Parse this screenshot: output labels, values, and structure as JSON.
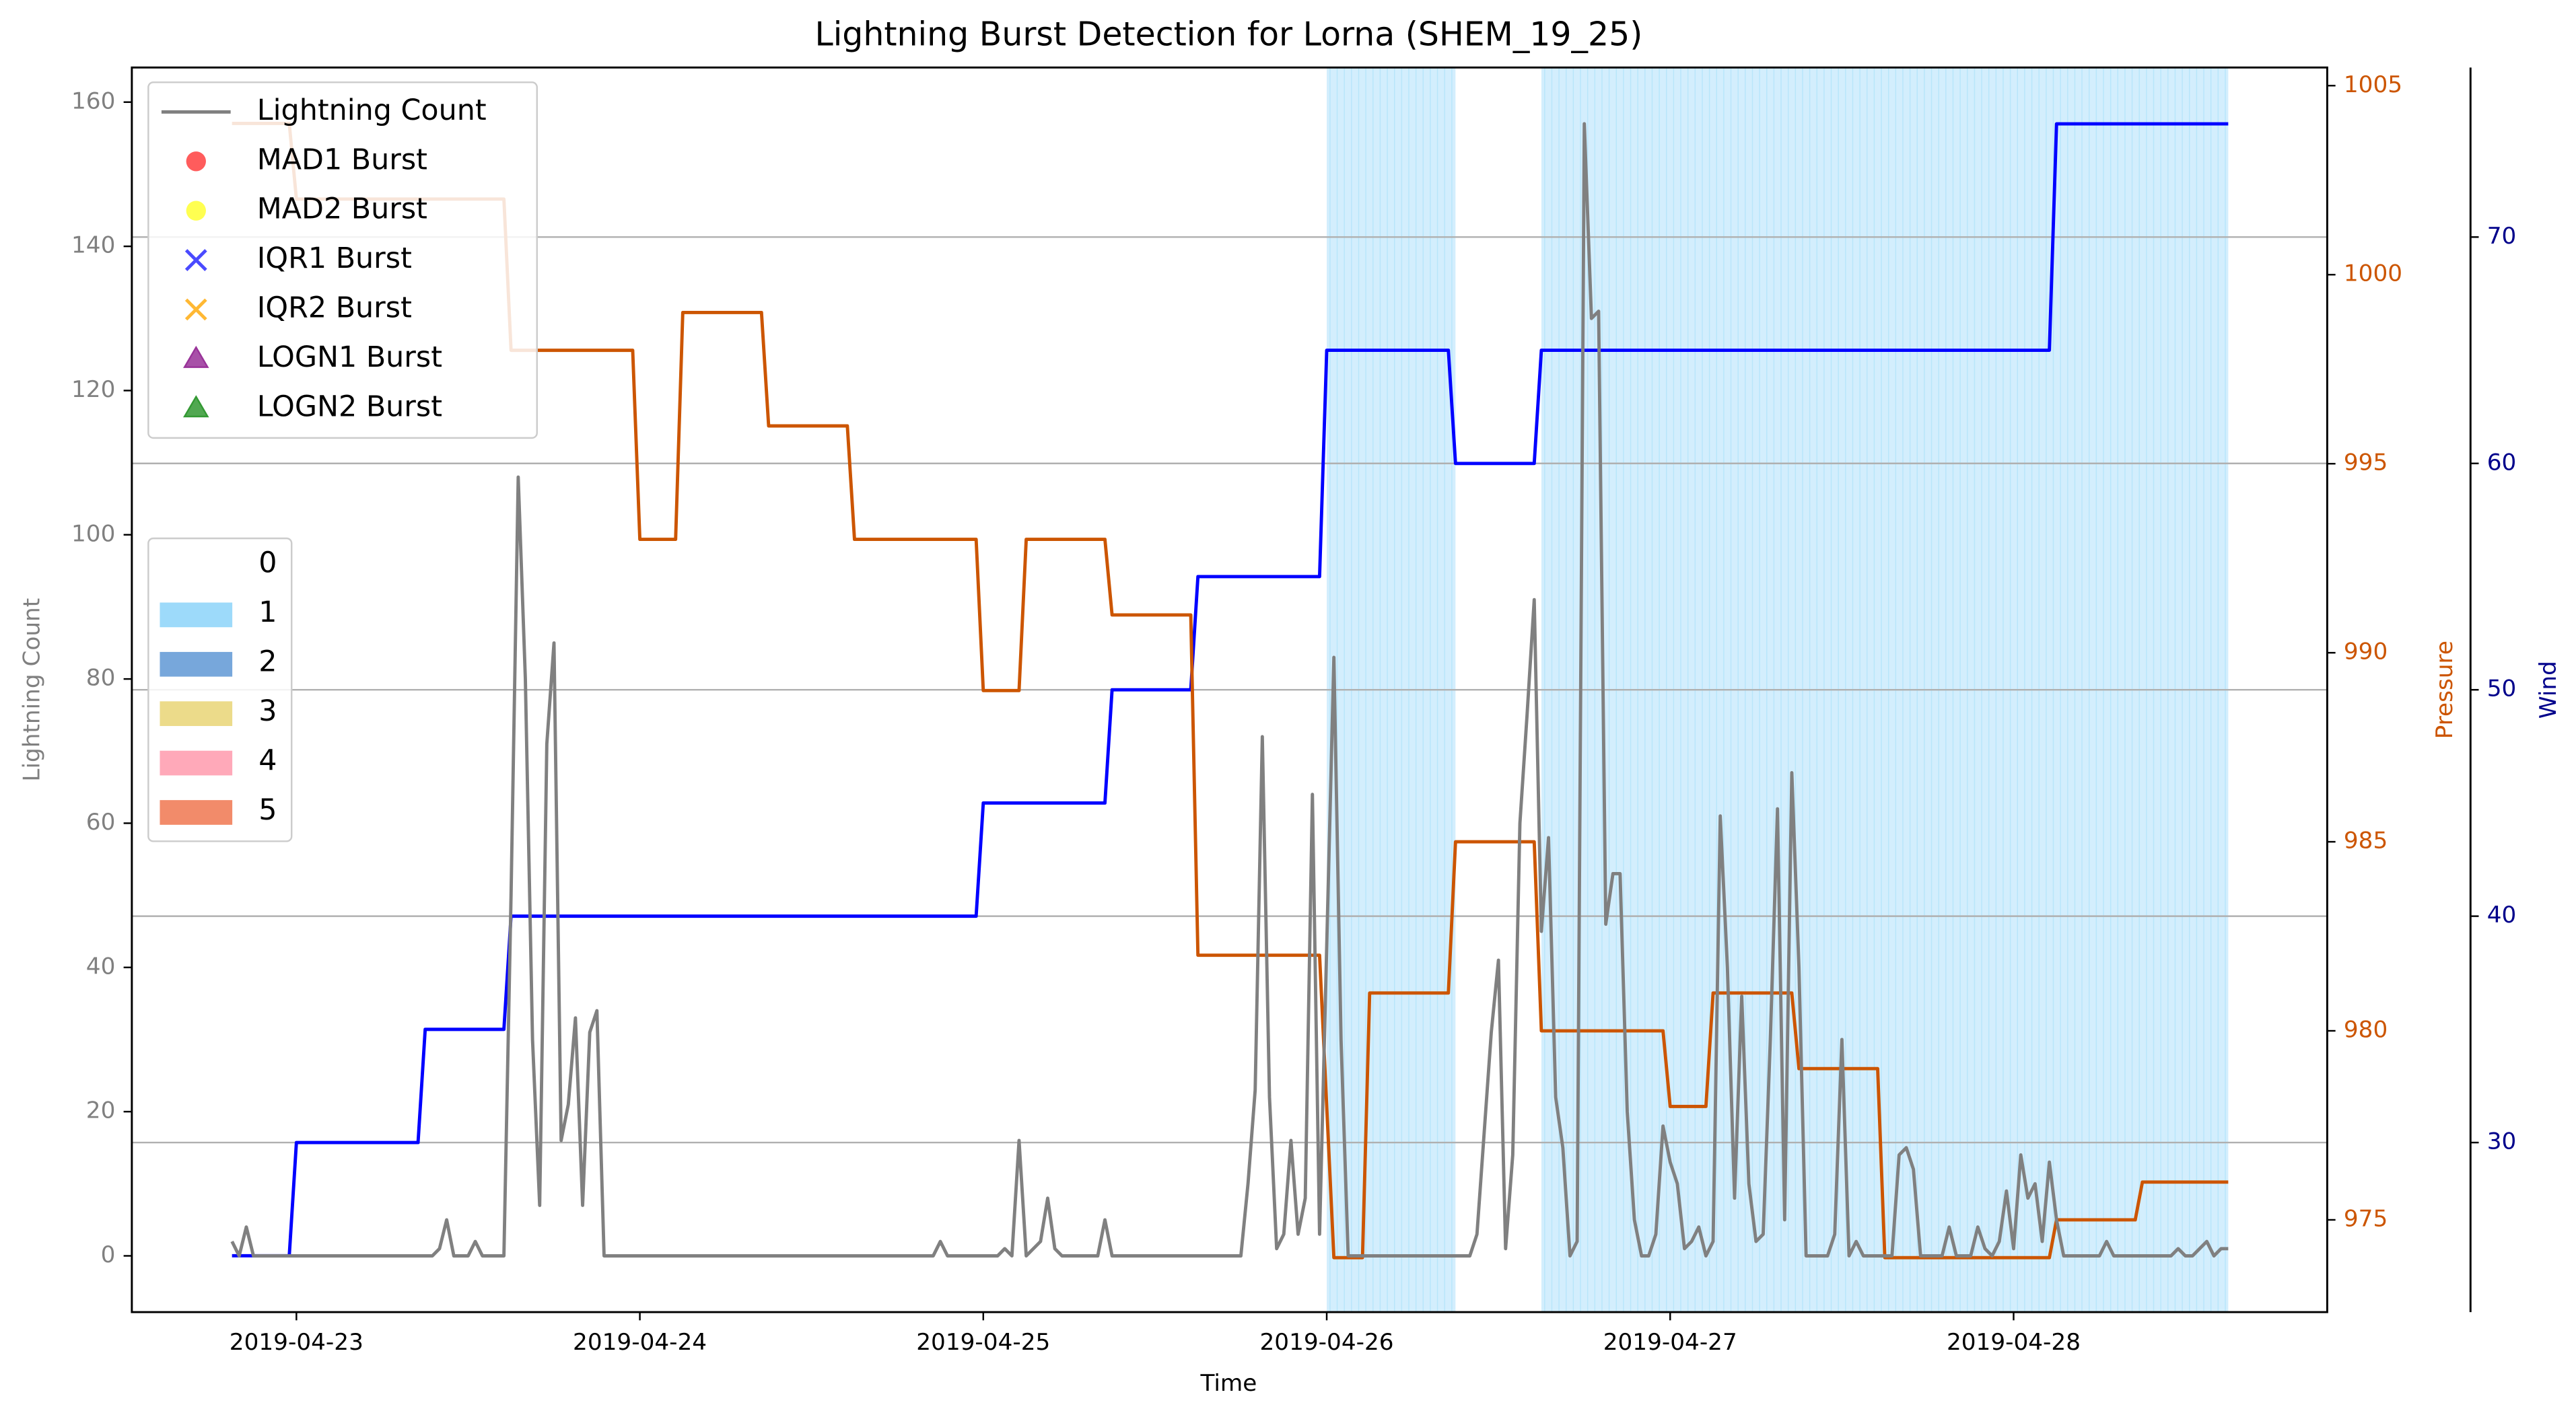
{
  "chart_data": {
    "type": "line",
    "title": "Lightning Burst Detection for Lorna (SHEM_19_25)",
    "xlabel": "Time",
    "ylabel": "Lightning Count",
    "y2label": "Pressure",
    "y3label": "Wind",
    "xlim": [
      "2019-04-22 12:30",
      "2019-04-28 21:55"
    ],
    "xticks": [
      "2019-04-23",
      "2019-04-24",
      "2019-04-25",
      "2019-04-26",
      "2019-04-27",
      "2019-04-28"
    ],
    "ylim": [
      -7.8,
      164.8
    ],
    "yticks": [
      0,
      20,
      40,
      60,
      80,
      100,
      120,
      140,
      160
    ],
    "y2lim": [
      972.56,
      1005.48
    ],
    "y2ticks": [
      975,
      980,
      985,
      990,
      995,
      1000,
      1005
    ],
    "y3lim": [
      22.51,
      77.49
    ],
    "y3ticks": [
      30,
      40,
      50,
      60,
      70
    ],
    "grid": "y3",
    "legend": "upper left",
    "series": [
      {
        "name": "Lightning Count",
        "color": "#808080",
        "axis": "y",
        "x": [
          "2019-04-22 19:30",
          "2019-04-22 20:00",
          "2019-04-22 20:30",
          "2019-04-22 21:00",
          "2019-04-23 09:30",
          "2019-04-23 10:00",
          "2019-04-23 10:30",
          "2019-04-23 11:00",
          "2019-04-23 12:00",
          "2019-04-23 12:30",
          "2019-04-23 13:00",
          "2019-04-23 14:30",
          "2019-04-23 15:00",
          "2019-04-23 15:30",
          "2019-04-23 16:00",
          "2019-04-23 16:30",
          "2019-04-23 17:00",
          "2019-04-23 17:30",
          "2019-04-23 18:00",
          "2019-04-23 18:30",
          "2019-04-23 19:00",
          "2019-04-23 19:30",
          "2019-04-23 20:00",
          "2019-04-23 20:30",
          "2019-04-23 21:00",
          "2019-04-23 21:30",
          "2019-04-24 20:30",
          "2019-04-24 21:00",
          "2019-04-24 21:30",
          "2019-04-25 01:00",
          "2019-04-25 01:30",
          "2019-04-25 02:00",
          "2019-04-25 02:30",
          "2019-04-25 03:00",
          "2019-04-25 04:00",
          "2019-04-25 04:30",
          "2019-04-25 05:00",
          "2019-04-25 05:30",
          "2019-04-25 08:00",
          "2019-04-25 08:30",
          "2019-04-25 09:00",
          "2019-04-25 18:00",
          "2019-04-25 18:30",
          "2019-04-25 19:00",
          "2019-04-25 19:30",
          "2019-04-25 20:00",
          "2019-04-25 20:30",
          "2019-04-25 21:00",
          "2019-04-25 21:30",
          "2019-04-25 22:00",
          "2019-04-25 22:30",
          "2019-04-25 23:00",
          "2019-04-25 23:30",
          "2019-04-26 00:30",
          "2019-04-26 01:00",
          "2019-04-26 01:30",
          "2019-04-26 10:00",
          "2019-04-26 10:30",
          "2019-04-26 11:30",
          "2019-04-26 12:00",
          "2019-04-26 12:30",
          "2019-04-26 13:00",
          "2019-04-26 13:30",
          "2019-04-26 14:00",
          "2019-04-26 14:30",
          "2019-04-26 15:00",
          "2019-04-26 15:30",
          "2019-04-26 16:00",
          "2019-04-26 16:30",
          "2019-04-26 17:00",
          "2019-04-26 17:30",
          "2019-04-26 18:00",
          "2019-04-26 18:30",
          "2019-04-26 19:00",
          "2019-04-26 19:30",
          "2019-04-26 20:00",
          "2019-04-26 20:30",
          "2019-04-26 21:00",
          "2019-04-26 21:30",
          "2019-04-26 22:00",
          "2019-04-26 22:30",
          "2019-04-26 23:00",
          "2019-04-26 23:30",
          "2019-04-27 00:00",
          "2019-04-27 00:30",
          "2019-04-27 01:00",
          "2019-04-27 01:30",
          "2019-04-27 02:00",
          "2019-04-27 02:30",
          "2019-04-27 03:00",
          "2019-04-27 03:30",
          "2019-04-27 04:00",
          "2019-04-27 04:30",
          "2019-04-27 05:00",
          "2019-04-27 05:30",
          "2019-04-27 06:00",
          "2019-04-27 06:30",
          "2019-04-27 07:00",
          "2019-04-27 07:30",
          "2019-04-27 08:00",
          "2019-04-27 08:30",
          "2019-04-27 09:00",
          "2019-04-27 09:30",
          "2019-04-27 11:00",
          "2019-04-27 11:30",
          "2019-04-27 12:00",
          "2019-04-27 12:30",
          "2019-04-27 13:00",
          "2019-04-27 13:30",
          "2019-04-27 15:30",
          "2019-04-27 16:00",
          "2019-04-27 16:30",
          "2019-04-27 17:00",
          "2019-04-27 17:30",
          "2019-04-27 19:00",
          "2019-04-27 19:30",
          "2019-04-27 20:00",
          "2019-04-27 21:00",
          "2019-04-27 21:30",
          "2019-04-27 22:00",
          "2019-04-27 22:30",
          "2019-04-27 23:00",
          "2019-04-27 23:30",
          "2019-04-28 00:00",
          "2019-04-28 00:30",
          "2019-04-28 01:00",
          "2019-04-28 01:30",
          "2019-04-28 02:00",
          "2019-04-28 02:30",
          "2019-04-28 03:00",
          "2019-04-28 03:30",
          "2019-04-28 06:00",
          "2019-04-28 06:30",
          "2019-04-28 07:00",
          "2019-04-28 11:00",
          "2019-04-28 11:30",
          "2019-04-28 12:00",
          "2019-04-28 12:30",
          "2019-04-28 13:00",
          "2019-04-28 13:30",
          "2019-04-28 14:00",
          "2019-04-28 14:30",
          "2019-04-28 15:00"
        ],
        "values": [
          2,
          0,
          4,
          0,
          0,
          1,
          5,
          0,
          0,
          2,
          0,
          0,
          50,
          108,
          80,
          30,
          7,
          71,
          85,
          16,
          21,
          33,
          7,
          31,
          34,
          0,
          0,
          2,
          0,
          0,
          1,
          0,
          16,
          0,
          2,
          8,
          1,
          0,
          0,
          5,
          0,
          0,
          10,
          23,
          72,
          22,
          1,
          3,
          16,
          3,
          8,
          64,
          3,
          83,
          30,
          0,
          0,
          3,
          31,
          41,
          1,
          14,
          60,
          75,
          91,
          45,
          58,
          22,
          15,
          0,
          2,
          157,
          130,
          131,
          46,
          53,
          53,
          20,
          5,
          0,
          0,
          3,
          18,
          13,
          10,
          1,
          2,
          4,
          0,
          2,
          61,
          40,
          8,
          36,
          10,
          2,
          3,
          30,
          62,
          5,
          67,
          40,
          0,
          0,
          3,
          30,
          0,
          2,
          0,
          0,
          14,
          15,
          12,
          0,
          0,
          4,
          0,
          0,
          4,
          1,
          0,
          2,
          9,
          1,
          14,
          8,
          10,
          2,
          13,
          5,
          0,
          0,
          2,
          0,
          0,
          1,
          0,
          0,
          1,
          2,
          0,
          1,
          1
        ]
      },
      {
        "color": "#cc5500",
        "axis": "y2",
        "x": [
          "2019-04-22 19:30",
          "2019-04-22 23:30",
          "2019-04-23 00:00",
          "2019-04-23 14:30",
          "2019-04-23 15:00",
          "2019-04-23 23:30",
          "2019-04-24 00:00",
          "2019-04-24 02:30",
          "2019-04-24 03:00",
          "2019-04-24 08:30",
          "2019-04-24 09:00",
          "2019-04-24 14:30",
          "2019-04-24 15:00",
          "2019-04-24 23:30",
          "2019-04-25 00:00",
          "2019-04-25 02:30",
          "2019-04-25 03:00",
          "2019-04-25 08:30",
          "2019-04-25 09:00",
          "2019-04-25 14:30",
          "2019-04-25 15:00",
          "2019-04-25 23:30",
          "2019-04-26 00:00",
          "2019-04-26 00:30",
          "2019-04-26 02:30",
          "2019-04-26 03:00",
          "2019-04-26 08:30",
          "2019-04-26 09:00",
          "2019-04-26 14:30",
          "2019-04-26 15:00",
          "2019-04-26 23:30",
          "2019-04-27 00:00",
          "2019-04-27 02:30",
          "2019-04-27 03:00",
          "2019-04-27 08:30",
          "2019-04-27 09:00",
          "2019-04-27 14:30",
          "2019-04-27 15:00",
          "2019-04-28 02:30",
          "2019-04-28 03:00",
          "2019-04-28 08:30",
          "2019-04-28 09:00",
          "2019-04-28 15:00"
        ],
        "values": [
          1004,
          1004,
          1002,
          1002,
          998,
          998,
          993,
          993,
          999,
          999,
          996,
          996,
          993,
          993,
          989,
          989,
          993,
          993,
          991,
          991,
          982,
          982,
          978,
          974,
          974,
          981,
          981,
          985,
          985,
          980,
          980,
          978,
          978,
          981,
          981,
          979,
          979,
          974,
          974,
          975,
          975,
          976,
          976
        ]
      },
      {
        "color": "#0000ff",
        "axis": "y3",
        "x": [
          "2019-04-22 19:30",
          "2019-04-22 23:30",
          "2019-04-23 00:00",
          "2019-04-23 08:30",
          "2019-04-23 09:00",
          "2019-04-23 14:30",
          "2019-04-23 15:00",
          "2019-04-24 23:30",
          "2019-04-25 00:00",
          "2019-04-25 08:30",
          "2019-04-25 09:00",
          "2019-04-25 14:30",
          "2019-04-25 15:00",
          "2019-04-25 23:30",
          "2019-04-26 00:00",
          "2019-04-26 08:30",
          "2019-04-26 09:00",
          "2019-04-26 14:30",
          "2019-04-26 15:00",
          "2019-04-28 02:30",
          "2019-04-28 03:00",
          "2019-04-28 15:00"
        ],
        "values": [
          25,
          25,
          30,
          30,
          35,
          35,
          40,
          40,
          45,
          45,
          50,
          50,
          55,
          55,
          65,
          65,
          60,
          60,
          65,
          65,
          75,
          75
        ]
      }
    ],
    "bursts": [
      {
        "label": "MAD1 Burst",
        "color": "#ff4040",
        "marker": "circle"
      },
      {
        "label": "MAD2 Burst",
        "color": "#ffff33",
        "marker": "circle"
      },
      {
        "label": "IQR1 Burst",
        "color": "#4a4aff",
        "marker": "x"
      },
      {
        "label": "IQR2 Burst",
        "color": "#ffb833",
        "marker": "x"
      },
      {
        "label": "LOGN1 Burst",
        "color": "#993399",
        "marker": "triangle"
      },
      {
        "label": "LOGN2 Burst",
        "color": "#339933",
        "marker": "triangle"
      }
    ],
    "categories_legend": [
      {
        "label": "0",
        "color": null
      },
      {
        "label": "1",
        "color": "#9ddafa"
      },
      {
        "label": "2",
        "color": "#77a7db"
      },
      {
        "label": "3",
        "color": "#ecdb8a"
      },
      {
        "label": "4",
        "color": "#ffa9b9"
      },
      {
        "label": "5",
        "color": "#f28b6a"
      }
    ],
    "shading": [
      {
        "start": "2019-04-26 00:00",
        "end": "2019-04-26 09:00",
        "category": "1"
      },
      {
        "start": "2019-04-26 15:00",
        "end": "2019-04-28 15:00",
        "category": "1"
      }
    ]
  }
}
